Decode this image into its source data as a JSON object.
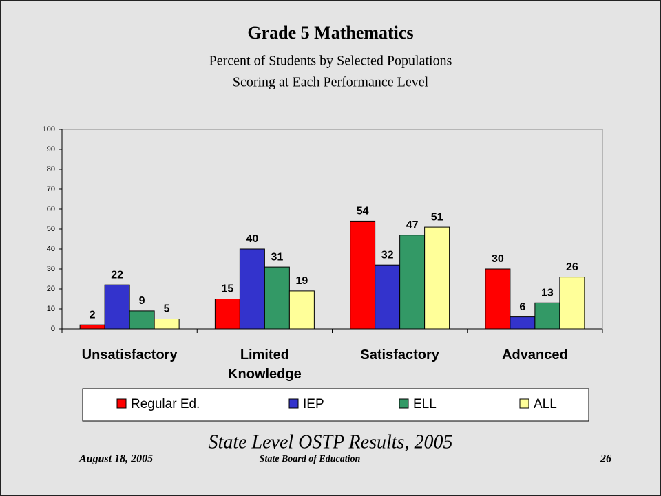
{
  "chart_data": {
    "type": "bar",
    "title": "Grade 5 Mathematics",
    "subtitle": [
      "Percent of Students by Selected Populations",
      "Scoring at Each Performance Level"
    ],
    "categories": [
      "Unsatisfactory",
      "Limited Knowledge",
      "Satisfactory",
      "Advanced"
    ],
    "series": [
      {
        "name": "Regular Ed.",
        "color": "#ff0000",
        "values": [
          2,
          15,
          54,
          30
        ]
      },
      {
        "name": "IEP",
        "color": "#3333cc",
        "values": [
          22,
          40,
          32,
          6
        ]
      },
      {
        "name": "ELL",
        "color": "#339966",
        "values": [
          9,
          31,
          47,
          13
        ]
      },
      {
        "name": "ALL",
        "color": "#ffff99",
        "values": [
          5,
          19,
          51,
          26
        ]
      }
    ],
    "ylim": [
      0,
      100
    ],
    "yticks": [
      0,
      10,
      20,
      30,
      40,
      50,
      60,
      70,
      80,
      90,
      100
    ],
    "grid": false,
    "legend": "bottom"
  },
  "footer": {
    "source": "State Level OSTP Results, 2005",
    "date": "August 18, 2005",
    "organization": "State Board of Education",
    "page": 26
  }
}
